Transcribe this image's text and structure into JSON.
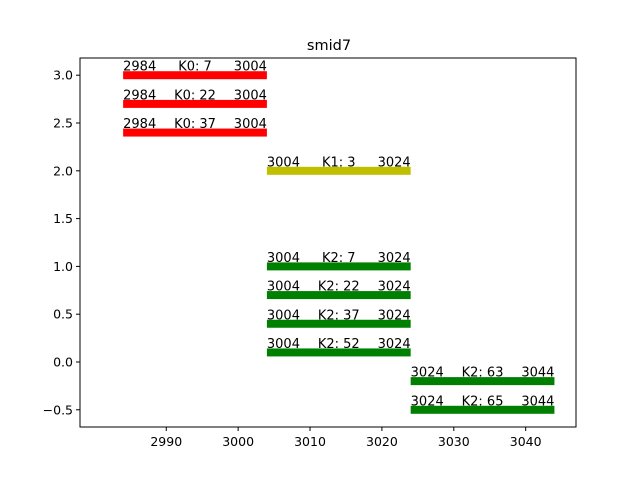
{
  "chart_data": {
    "type": "gantt",
    "title": "smid7",
    "xlim": [
      2978,
      3047
    ],
    "ylim": [
      -0.68,
      3.18
    ],
    "xticks": [
      2990,
      3000,
      3010,
      3020,
      3030,
      3040
    ],
    "yticks": [
      3.0,
      2.5,
      2.0,
      1.5,
      1.0,
      0.5,
      0.0,
      -0.5
    ],
    "ytick_labels": [
      "3.0",
      "2.5",
      "2.0",
      "1.5",
      "1.0",
      "0.5",
      "0.0",
      "−0.5"
    ],
    "grid": false,
    "colors": {
      "K0": "#ff0000",
      "K1": "#bfbf00",
      "K2": "#008000"
    },
    "bars": [
      {
        "start": 2984,
        "end": 3004,
        "y": 3.0,
        "group": "K0",
        "label": "K0: 7",
        "start_label": "2984",
        "end_label": "3004"
      },
      {
        "start": 2984,
        "end": 3004,
        "y": 2.7,
        "group": "K0",
        "label": "K0: 22",
        "start_label": "2984",
        "end_label": "3004"
      },
      {
        "start": 2984,
        "end": 3004,
        "y": 2.4,
        "group": "K0",
        "label": "K0: 37",
        "start_label": "2984",
        "end_label": "3004"
      },
      {
        "start": 3004,
        "end": 3024,
        "y": 2.0,
        "group": "K1",
        "label": "K1: 3",
        "start_label": "3004",
        "end_label": "3024"
      },
      {
        "start": 3004,
        "end": 3024,
        "y": 1.0,
        "group": "K2",
        "label": "K2: 7",
        "start_label": "3004",
        "end_label": "3024"
      },
      {
        "start": 3004,
        "end": 3024,
        "y": 0.7,
        "group": "K2",
        "label": "K2: 22",
        "start_label": "3004",
        "end_label": "3024"
      },
      {
        "start": 3004,
        "end": 3024,
        "y": 0.4,
        "group": "K2",
        "label": "K2: 37",
        "start_label": "3004",
        "end_label": "3024"
      },
      {
        "start": 3004,
        "end": 3024,
        "y": 0.1,
        "group": "K2",
        "label": "K2: 52",
        "start_label": "3004",
        "end_label": "3024"
      },
      {
        "start": 3024,
        "end": 3044,
        "y": -0.2,
        "group": "K2",
        "label": "K2: 63",
        "start_label": "3024",
        "end_label": "3044"
      },
      {
        "start": 3024,
        "end": 3044,
        "y": -0.5,
        "group": "K2",
        "label": "K2: 65",
        "start_label": "3024",
        "end_label": "3044"
      }
    ]
  }
}
